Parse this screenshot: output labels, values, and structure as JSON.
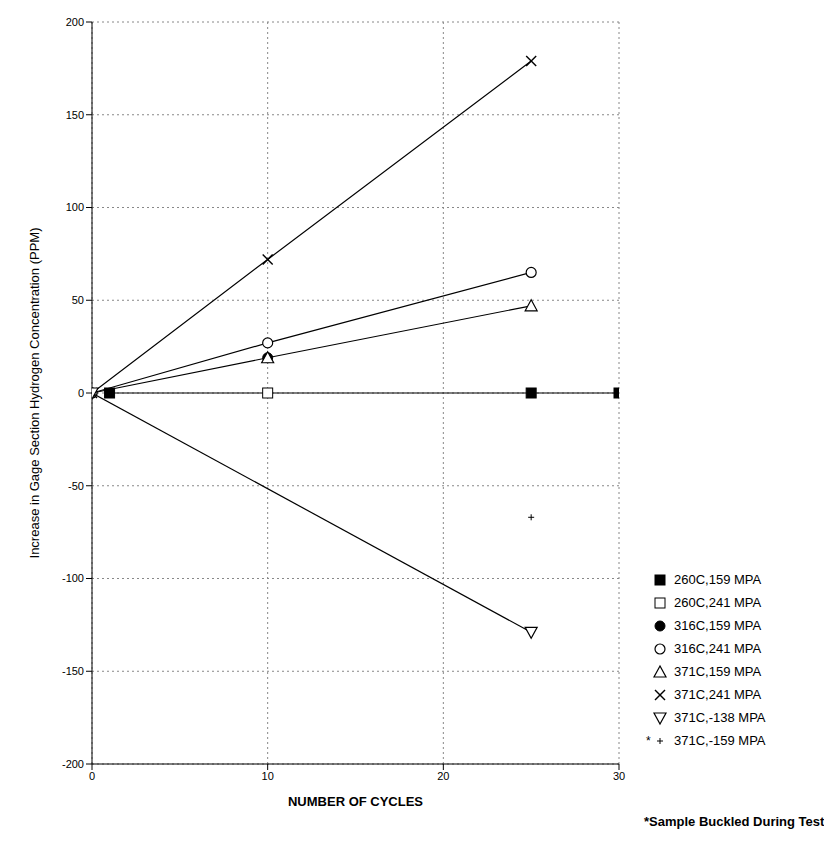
{
  "chart_data": {
    "type": "scatter",
    "x_label": "NUMBER OF CYCLES",
    "y_label": "Increase in Gage Section Hydrogen Concentration (PPM)",
    "xlim": [
      0,
      30
    ],
    "xticks": [
      0,
      10,
      20,
      30
    ],
    "ylim": [
      -200,
      200
    ],
    "yticks": [
      -200,
      -150,
      -100,
      -50,
      0,
      50,
      100,
      150,
      200
    ],
    "grid": true,
    "legend": "lower right",
    "annotations": [
      "*Sample Buckled During Test"
    ],
    "series": [
      {
        "name": "260C,159 MPA",
        "color": "#000000",
        "marker": "square",
        "line_style": "solid",
        "x": [
          1,
          25,
          30
        ],
        "values": [
          0,
          0,
          0
        ]
      },
      {
        "name": "260C,241 MPA",
        "color": "#000000",
        "marker": "square_open",
        "line_style": "none",
        "x": [
          10
        ],
        "values": [
          0
        ]
      },
      {
        "name": "316C,159 MPA",
        "color": "#000000",
        "marker": "circle",
        "line_style": "solid",
        "x": [
          0,
          10
        ],
        "values": [
          0,
          19
        ]
      },
      {
        "name": "316C,241 MPA",
        "color": "#000000",
        "marker": "circle_open",
        "line_style": "solid",
        "x": [
          0,
          10,
          25
        ],
        "values": [
          0,
          27,
          65
        ]
      },
      {
        "name": "371C,159 MPA",
        "color": "#000000",
        "marker": "triangle_open",
        "line_style": "solid",
        "x": [
          10,
          25
        ],
        "values": [
          19,
          47
        ]
      },
      {
        "name": "371C,241 MPA",
        "color": "#000000",
        "marker": "x",
        "line_style": "solid",
        "x": [
          0,
          10,
          25
        ],
        "values": [
          0,
          72,
          179
        ]
      },
      {
        "name": "371C,-138 MPA",
        "color": "#000000",
        "marker": "triangle_down_open",
        "line_style": "solid",
        "x": [
          0,
          25
        ],
        "values": [
          0,
          -129
        ]
      },
      {
        "name": "*371C,-159 MPA",
        "color": "#000000",
        "marker": "plus",
        "line_style": "none",
        "x": [
          25
        ],
        "values": [
          -67
        ]
      }
    ]
  }
}
